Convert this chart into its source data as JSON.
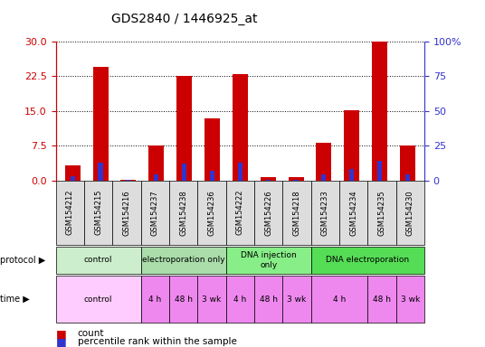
{
  "title": "GDS2840 / 1446925_at",
  "samples": [
    "GSM154212",
    "GSM154215",
    "GSM154216",
    "GSM154237",
    "GSM154238",
    "GSM154236",
    "GSM154222",
    "GSM154226",
    "GSM154218",
    "GSM154233",
    "GSM154234",
    "GSM154235",
    "GSM154230"
  ],
  "counts": [
    3.2,
    24.5,
    0.2,
    7.5,
    22.5,
    13.5,
    23.0,
    0.8,
    0.7,
    8.2,
    15.2,
    30.0,
    7.5
  ],
  "percentile_ranks": [
    3.0,
    12.5,
    0.5,
    4.5,
    12.0,
    7.0,
    13.0,
    0.5,
    0.5,
    4.5,
    8.0,
    14.0,
    4.5
  ],
  "ylim_left": [
    0,
    30
  ],
  "ylim_right": [
    0,
    100
  ],
  "yticks_left": [
    0,
    7.5,
    15,
    22.5,
    30
  ],
  "yticks_right": [
    0,
    25,
    50,
    75,
    100
  ],
  "ytick_labels_right": [
    "0",
    "25",
    "50",
    "75",
    "100%"
  ],
  "bar_color": "#CC0000",
  "percentile_color": "#3333CC",
  "bar_width": 0.55,
  "protocol_groups": [
    {
      "label": "control",
      "start": 0,
      "end": 2,
      "color": "#CCEECC"
    },
    {
      "label": "electroporation only",
      "start": 3,
      "end": 5,
      "color": "#AADDAA"
    },
    {
      "label": "DNA injection\nonly",
      "start": 6,
      "end": 8,
      "color": "#88EE88"
    },
    {
      "label": "DNA electroporation",
      "start": 9,
      "end": 12,
      "color": "#55DD55"
    }
  ],
  "time_groups": [
    {
      "label": "control",
      "start": 0,
      "end": 2,
      "color": "#FFCCFF"
    },
    {
      "label": "4 h",
      "start": 3,
      "end": 3,
      "color": "#EE88EE"
    },
    {
      "label": "48 h",
      "start": 4,
      "end": 4,
      "color": "#EE88EE"
    },
    {
      "label": "3 wk",
      "start": 5,
      "end": 5,
      "color": "#EE88EE"
    },
    {
      "label": "4 h",
      "start": 6,
      "end": 6,
      "color": "#EE88EE"
    },
    {
      "label": "48 h",
      "start": 7,
      "end": 7,
      "color": "#EE88EE"
    },
    {
      "label": "3 wk",
      "start": 8,
      "end": 8,
      "color": "#EE88EE"
    },
    {
      "label": "4 h",
      "start": 9,
      "end": 10,
      "color": "#EE88EE"
    },
    {
      "label": "48 h",
      "start": 11,
      "end": 11,
      "color": "#EE88EE"
    },
    {
      "label": "3 wk",
      "start": 12,
      "end": 12,
      "color": "#EE88EE"
    }
  ],
  "xtick_bg_color": "#DDDDDD",
  "legend_count_label": "count",
  "legend_percentile_label": "percentile rank within the sample",
  "bg_color": "#FFFFFF",
  "axis_left_color": "#CC0000",
  "axis_right_color": "#3333CC"
}
